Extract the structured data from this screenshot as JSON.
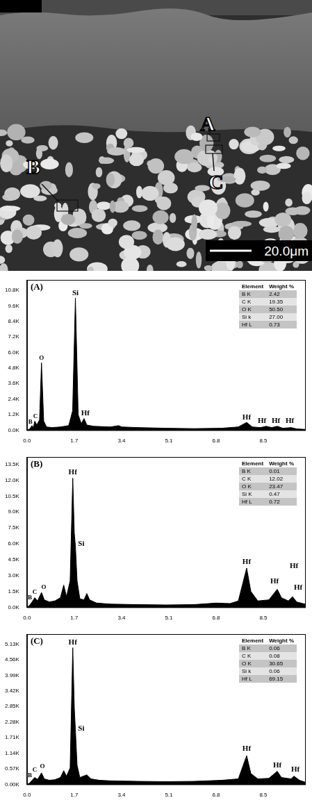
{
  "micrograph": {
    "markers": [
      "A",
      "B",
      "C"
    ],
    "scale_bar": "20.0μm"
  },
  "chart_data": [
    {
      "type": "line",
      "title": "(A)",
      "color": "#000000",
      "grid": false,
      "x": [
        0,
        0.1,
        0.18,
        0.23,
        0.28,
        0.35,
        0.45,
        0.52,
        0.6,
        0.7,
        0.9,
        1.2,
        1.5,
        1.64,
        1.74,
        1.84,
        1.95,
        2.05,
        2.15,
        2.4,
        3.0,
        3.3,
        3.4,
        4.0,
        5.0,
        6.0,
        7.0,
        7.6,
        7.9,
        8.1,
        8.4,
        8.6,
        8.8,
        9.0,
        9.2,
        9.5,
        9.7,
        10.0
      ],
      "values": [
        0,
        100,
        350,
        200,
        700,
        400,
        800,
        5200,
        700,
        250,
        200,
        250,
        350,
        1500,
        10200,
        1200,
        500,
        900,
        400,
        300,
        250,
        350,
        250,
        200,
        150,
        120,
        150,
        250,
        600,
        250,
        200,
        300,
        200,
        300,
        150,
        200,
        100,
        60
      ],
      "xlim": [
        0,
        10
      ],
      "xticks": [
        {
          "value": 0,
          "label": "0.0"
        },
        1.7,
        3.4,
        5.1,
        6.8,
        8.5
      ],
      "ylim": [
        0,
        11600
      ],
      "yticks": [
        {
          "value": 0,
          "label": "0.0K"
        },
        {
          "value": 1200,
          "label": "1.2K"
        },
        {
          "value": 2400,
          "label": "2.4K"
        },
        {
          "value": 3600,
          "label": "3.6K"
        },
        {
          "value": 4800,
          "label": "4.8K"
        },
        {
          "value": 6000,
          "label": "6.0K"
        },
        {
          "value": 7200,
          "label": "7.2K"
        },
        {
          "value": 8400,
          "label": "8.4K"
        },
        {
          "value": 9600,
          "label": "9.6K"
        },
        {
          "value": 10800,
          "label": "10.8K"
        }
      ],
      "annotations": [
        {
          "text": "B",
          "x": 0.12,
          "y": 400
        },
        {
          "text": "C",
          "x": 0.3,
          "y": 800
        },
        {
          "text": "O",
          "x": 0.52,
          "y": 5300
        },
        {
          "text": "Si",
          "x": 1.74,
          "y": 10300
        },
        {
          "text": "Hf",
          "x": 2.1,
          "y": 1000
        },
        {
          "text": "Hf",
          "x": 7.9,
          "y": 700
        },
        {
          "text": "Hf",
          "x": 8.45,
          "y": 400
        },
        {
          "text": "Hf",
          "x": 8.95,
          "y": 400
        },
        {
          "text": "Hf",
          "x": 9.45,
          "y": 400
        }
      ],
      "table": {
        "header": [
          "Element",
          "Weight %"
        ],
        "rows": [
          [
            "B K",
            "2.42"
          ],
          [
            "C K",
            "19.35"
          ],
          [
            "O K",
            "50.50"
          ],
          [
            "Si k",
            "27.00"
          ],
          [
            "Hf L",
            "0.73"
          ]
        ]
      }
    },
    {
      "type": "line",
      "title": "(B)",
      "color": "#000000",
      "grid": false,
      "x": [
        0,
        0.1,
        0.18,
        0.28,
        0.38,
        0.52,
        0.62,
        0.8,
        1.0,
        1.2,
        1.32,
        1.42,
        1.55,
        1.645,
        1.7,
        1.74,
        1.8,
        1.9,
        2.05,
        2.15,
        2.25,
        2.5,
        3.0,
        4.0,
        5.0,
        6.0,
        6.8,
        7.3,
        7.6,
        7.9,
        8.05,
        8.3,
        8.7,
        9.0,
        9.15,
        9.4,
        9.55,
        9.7,
        10.0
      ],
      "values": [
        0,
        200,
        500,
        900,
        600,
        1400,
        700,
        500,
        600,
        900,
        2100,
        1000,
        2500,
        12200,
        7000,
        5800,
        2500,
        800,
        700,
        1300,
        700,
        400,
        300,
        250,
        220,
        250,
        400,
        350,
        600,
        3700,
        1500,
        600,
        700,
        1700,
        900,
        600,
        1000,
        500,
        300
      ],
      "xlim": [
        0,
        10
      ],
      "xticks": [
        {
          "value": 0,
          "label": "0.0"
        },
        1.7,
        3.4,
        5.1,
        6.8,
        8.5
      ],
      "ylim": [
        0,
        14200
      ],
      "yticks": [
        {
          "value": 0,
          "label": "0.0K"
        },
        {
          "value": 1500,
          "label": "1.5K"
        },
        {
          "value": 3000,
          "label": "3.0K"
        },
        {
          "value": 4500,
          "label": "4.5K"
        },
        {
          "value": 6000,
          "label": "6.0K"
        },
        {
          "value": 7500,
          "label": "7.5K"
        },
        {
          "value": 9000,
          "label": "9.0K"
        },
        {
          "value": 10500,
          "label": "10.5K"
        },
        {
          "value": 12000,
          "label": "12.0K"
        },
        {
          "value": 13500,
          "label": "13.5K"
        }
      ],
      "annotations": [
        {
          "text": "B",
          "x": 0.1,
          "y": 600
        },
        {
          "text": "C",
          "x": 0.28,
          "y": 1100
        },
        {
          "text": "O",
          "x": 0.6,
          "y": 1600
        },
        {
          "text": "Hf",
          "x": 1.645,
          "y": 12400
        },
        {
          "text": "Si",
          "x": 1.95,
          "y": 5600
        },
        {
          "text": "Hf",
          "x": 7.9,
          "y": 3900
        },
        {
          "text": "Hf",
          "x": 8.9,
          "y": 2100
        },
        {
          "text": "Hf",
          "x": 9.6,
          "y": 3500
        },
        {
          "text": "Hf",
          "x": 9.75,
          "y": 1500
        }
      ],
      "table": {
        "header": [
          "Element",
          "Weight %"
        ],
        "rows": [
          [
            "B K",
            "0.01"
          ],
          [
            "C K",
            "12.02"
          ],
          [
            "O K",
            "23.47"
          ],
          [
            "Si K",
            "0.47"
          ],
          [
            "Hf L",
            "0.72"
          ]
        ]
      }
    },
    {
      "type": "line",
      "title": "(C)",
      "color": "#000000",
      "grid": false,
      "x": [
        0,
        0.1,
        0.18,
        0.28,
        0.38,
        0.52,
        0.62,
        0.8,
        1.0,
        1.2,
        1.32,
        1.42,
        1.55,
        1.645,
        1.7,
        1.74,
        1.8,
        1.9,
        2.15,
        2.3,
        2.6,
        3.0,
        4.0,
        5.0,
        6.0,
        7.0,
        7.6,
        7.9,
        8.05,
        8.3,
        8.7,
        9.0,
        9.15,
        9.5,
        9.6,
        9.8,
        10.0
      ],
      "values": [
        0,
        50,
        150,
        250,
        180,
        420,
        200,
        150,
        170,
        250,
        500,
        300,
        600,
        5000,
        2800,
        2000,
        700,
        250,
        350,
        200,
        150,
        130,
        110,
        100,
        110,
        150,
        200,
        1050,
        400,
        200,
        220,
        480,
        250,
        200,
        300,
        150,
        80
      ],
      "xlim": [
        0,
        10
      ],
      "xticks": [
        {
          "value": 0,
          "label": "0.0"
        },
        1.7,
        3.4,
        5.1,
        6.8,
        8.5
      ],
      "ylim": [
        0,
        5500
      ],
      "yticks": [
        {
          "value": 0,
          "label": "0.00K"
        },
        {
          "value": 570,
          "label": "0.57K"
        },
        {
          "value": 1140,
          "label": "1.14K"
        },
        {
          "value": 1710,
          "label": "1.71K"
        },
        {
          "value": 2280,
          "label": "2.28K"
        },
        {
          "value": 2850,
          "label": "2.85K"
        },
        {
          "value": 3420,
          "label": "3.42K"
        },
        {
          "value": 3990,
          "label": "3.99K"
        },
        {
          "value": 4560,
          "label": "4.56K"
        },
        {
          "value": 5130,
          "label": "5.13K"
        }
      ],
      "annotations": [
        {
          "text": "B",
          "x": 0.1,
          "y": 200
        },
        {
          "text": "C",
          "x": 0.28,
          "y": 400
        },
        {
          "text": "O",
          "x": 0.55,
          "y": 550
        },
        {
          "text": "Hf",
          "x": 1.645,
          "y": 5050
        },
        {
          "text": "Si",
          "x": 1.95,
          "y": 1900
        },
        {
          "text": "Hf",
          "x": 7.9,
          "y": 1150
        },
        {
          "text": "Hf",
          "x": 9.0,
          "y": 560
        },
        {
          "text": "Hf",
          "x": 9.65,
          "y": 400
        }
      ],
      "table": {
        "header": [
          "Element",
          "Weight %"
        ],
        "rows": [
          [
            "B K",
            "0.06"
          ],
          [
            "C K",
            "0.08"
          ],
          [
            "O K",
            "30.65"
          ],
          [
            "Si k",
            "0.06"
          ],
          [
            "Hf L",
            "69.15"
          ]
        ]
      }
    }
  ]
}
